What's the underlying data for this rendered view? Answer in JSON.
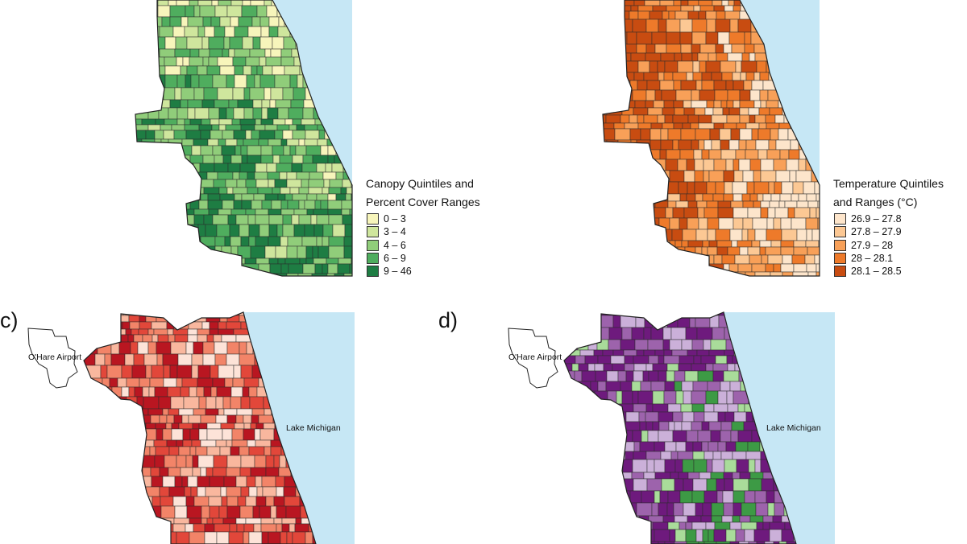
{
  "panels": [
    {
      "id": "a",
      "letter": "",
      "cmap": "green",
      "colors": [
        "#f7f5bb",
        "#cfe69d",
        "#90cd7a",
        "#4fad5e",
        "#1e7d43"
      ],
      "weights": [
        0.1,
        0.22,
        0.28,
        0.22,
        0.18
      ]
    },
    {
      "id": "b",
      "letter": "",
      "cmap": "orange",
      "colors": [
        "#fde5cb",
        "#fcc894",
        "#f8a058",
        "#ee7a2a",
        "#c84c11"
      ],
      "weights": [
        0.1,
        0.18,
        0.24,
        0.24,
        0.24
      ]
    },
    {
      "id": "c",
      "letter": "c)",
      "cmap": "red",
      "colors": [
        "#fde3d8",
        "#f9b79e",
        "#f28468",
        "#e2473a",
        "#b91621"
      ],
      "weights": [
        0.18,
        0.22,
        0.22,
        0.2,
        0.18
      ]
    },
    {
      "id": "d",
      "letter": "d)",
      "cmap": "purple-green",
      "colors": [
        "#6e1a7d",
        "#9d63ac",
        "#cbb0d9",
        "#a9dc9a",
        "#3d9a45"
      ],
      "weights": [
        0.45,
        0.22,
        0.2,
        0.09,
        0.04
      ]
    }
  ],
  "labels": {
    "airport": "O'Hare Airport",
    "lake": "Lake Michigan"
  },
  "legends": {
    "canopy": {
      "title_line1": "Canopy Quintiles and",
      "title_line2": "Percent Cover Ranges",
      "items": [
        {
          "label": "0 – 3",
          "color": "#f7f5bb"
        },
        {
          "label": "3 – 4",
          "color": "#cfe69d"
        },
        {
          "label": "4 – 6",
          "color": "#90cd7a"
        },
        {
          "label": "6 – 9",
          "color": "#4fad5e"
        },
        {
          "label": "9 – 46",
          "color": "#1e7d43"
        }
      ]
    },
    "temperature": {
      "title_line1": "Temperature Quintiles",
      "title_line2": "and Ranges (°C)",
      "items": [
        {
          "label": "26.9 – 27.8",
          "color": "#fde5cb"
        },
        {
          "label": "27.8 – 27.9",
          "color": "#fcc894"
        },
        {
          "label": "27.9 – 28",
          "color": "#f8a058"
        },
        {
          "label": "28 – 28.1",
          "color": "#ee7a2a"
        },
        {
          "label": "28.1 – 28.5",
          "color": "#c84c11"
        }
      ]
    }
  },
  "lake_color": "#c6e7f5"
}
